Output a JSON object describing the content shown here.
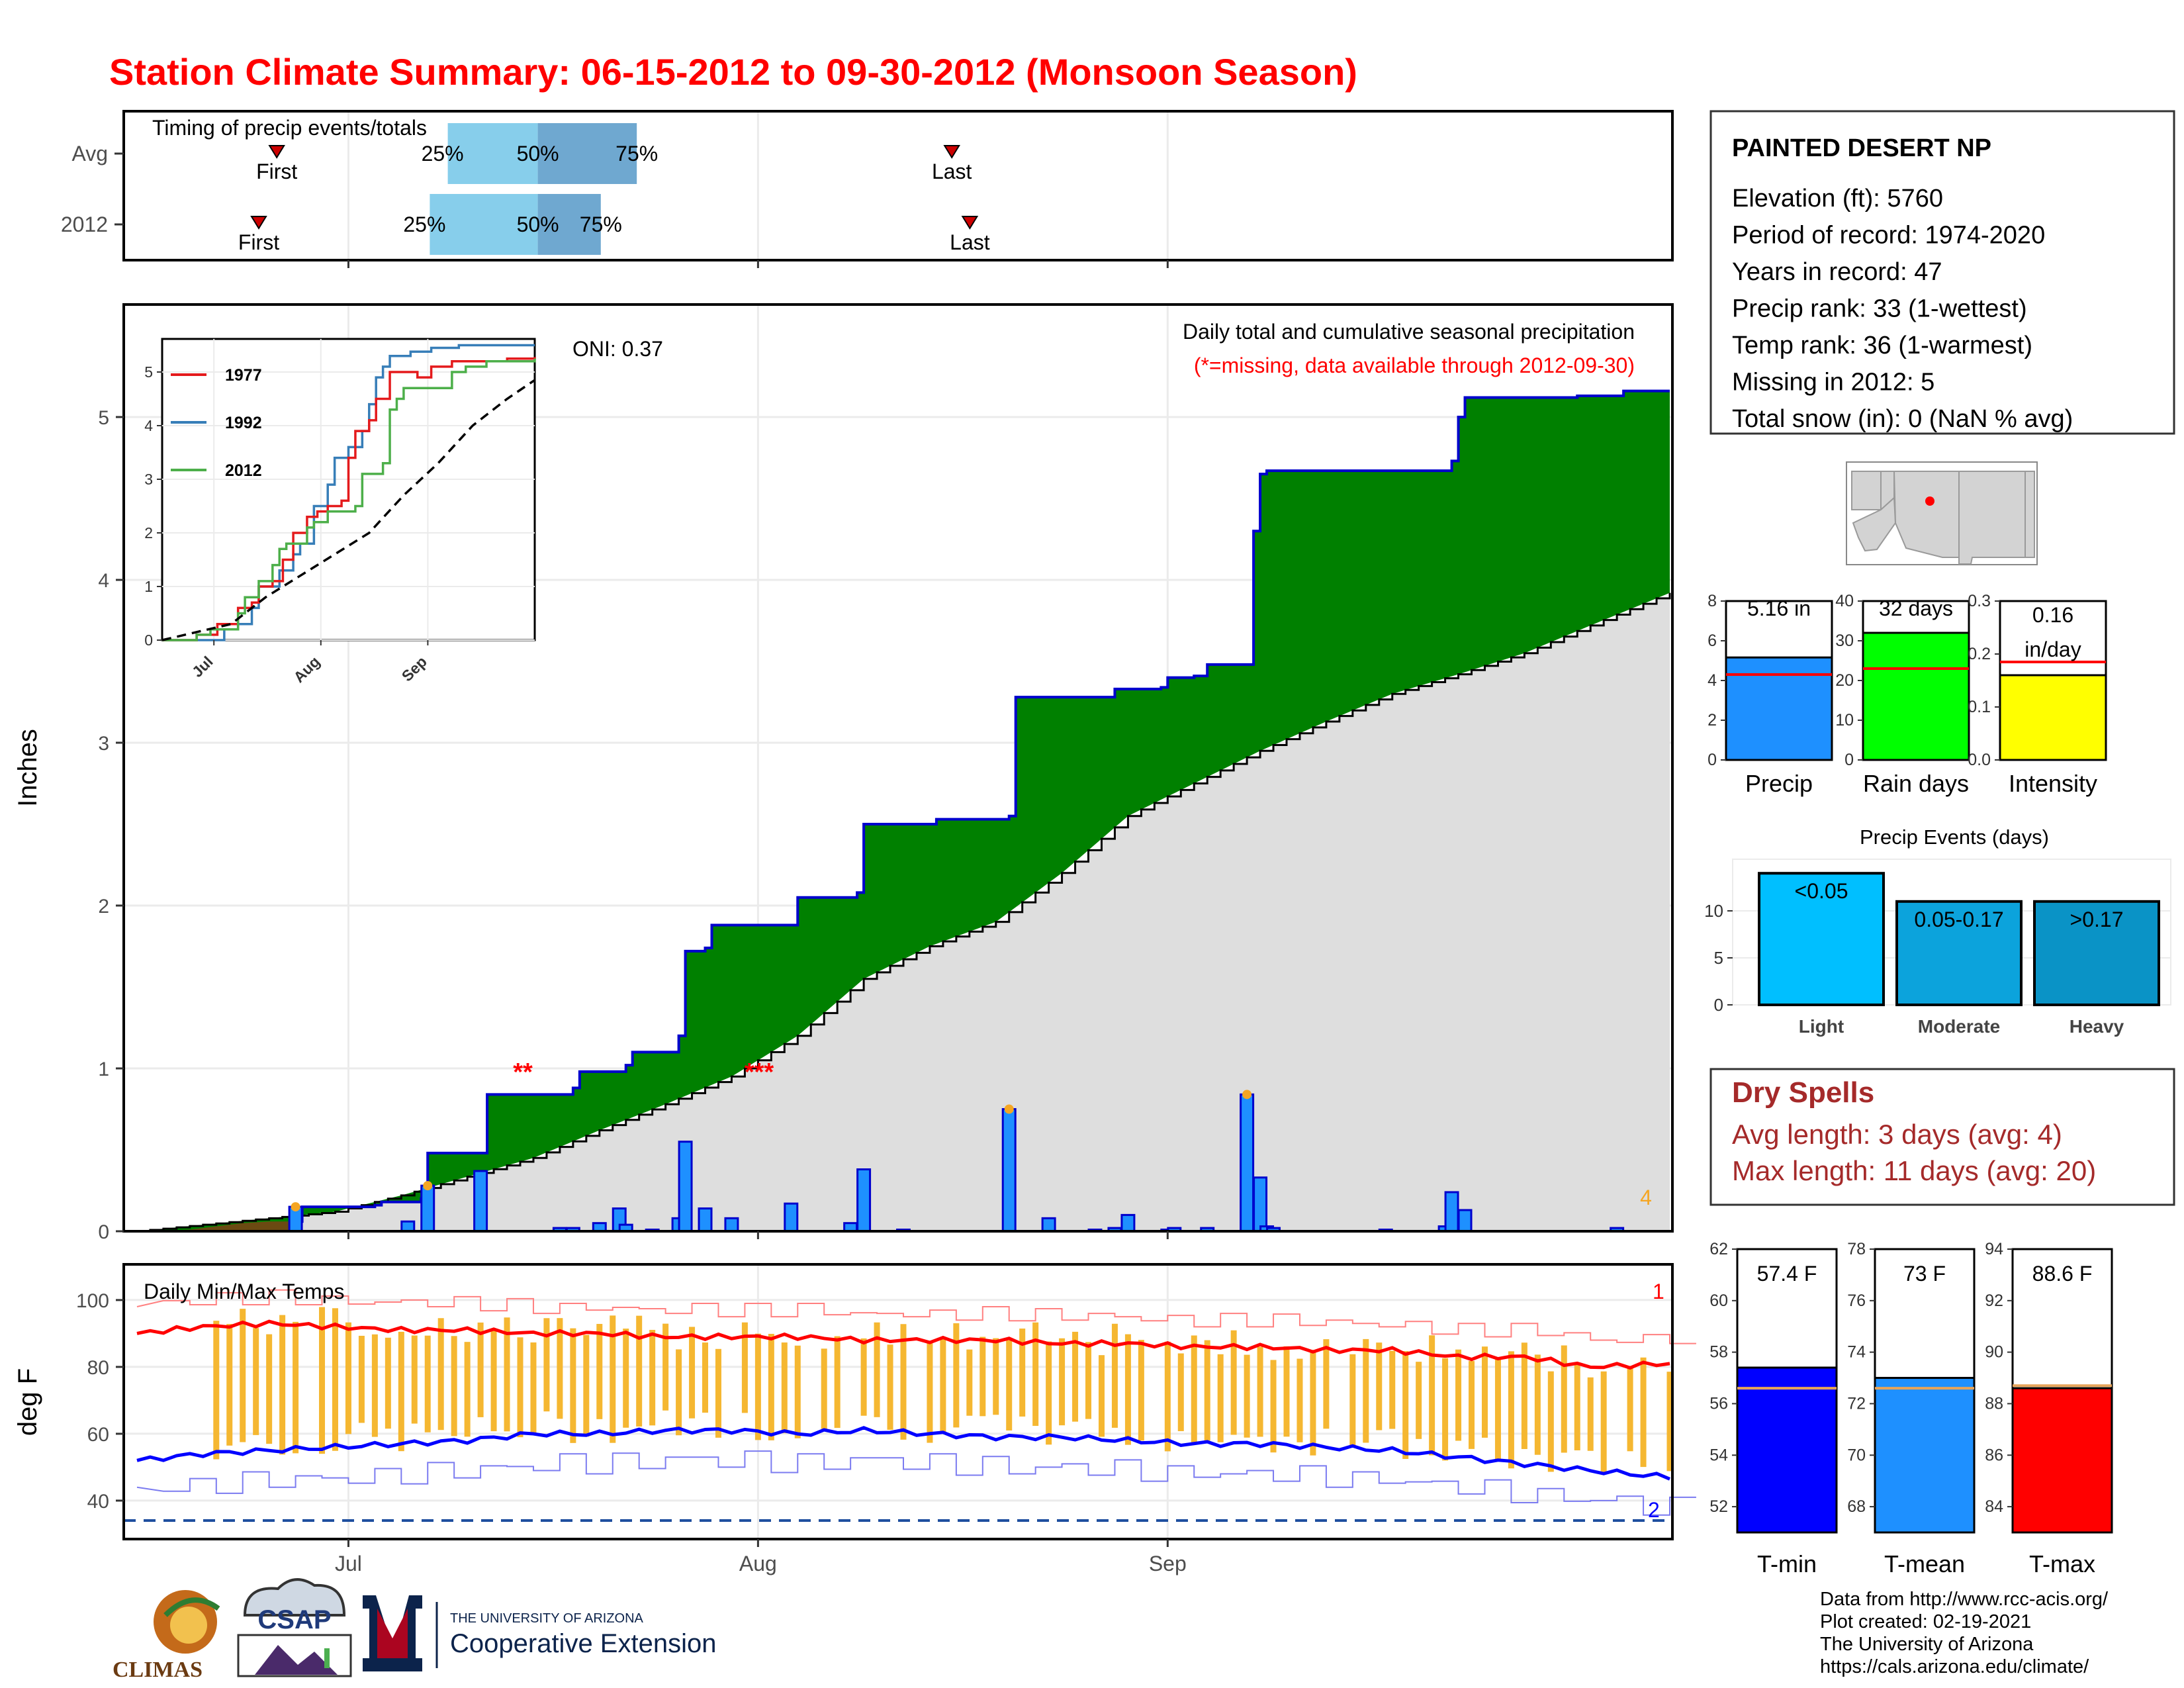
{
  "title": "Station Climate Summary: 06-15-2012 to 09-30-2012 (Monsoon Season)",
  "colors": {
    "title": "#ff0000",
    "cumulative_fill": "#008000",
    "avg_fill": "#dedede",
    "daily_bar": "#1e90ff",
    "tmax": "#ff0000",
    "tmin": "#0000ff",
    "temp_bar": "#f5b731",
    "dry": "#a52a2a"
  },
  "timing": {
    "title": "Timing of precip events/totals",
    "rows": [
      {
        "label": "Avg",
        "first_doy": 183,
        "p25_doy": 202,
        "p50_doy": 212,
        "p75_doy": 223,
        "last_doy": 258,
        "first_label": "First",
        "last_label": "Last",
        "p25_label": "25%",
        "p50_label": "50%",
        "p75_label": "75%"
      },
      {
        "label": "2012",
        "first_doy": 181,
        "p25_doy": 200,
        "p50_doy": 212,
        "p75_doy": 219,
        "last_doy": 260,
        "first_label": "First",
        "last_label": "Last",
        "p25_label": "25%",
        "p50_label": "50%",
        "p75_label": "75%"
      }
    ]
  },
  "precip_panel": {
    "ylabel": "Inches",
    "yticks": [
      "0",
      "1",
      "2",
      "3",
      "4",
      "5"
    ],
    "xticks": [
      "Jul",
      "Aug",
      "Sep"
    ],
    "oni": "ONI: 0.37",
    "caption1": "Daily total and cumulative seasonal precipitation",
    "caption2": "(*=missing, data available through 2012-09-30)",
    "missing1": "**",
    "missing2": "***",
    "count_label": "4"
  },
  "inset": {
    "yticks": [
      "0",
      "1",
      "2",
      "3",
      "4",
      "5"
    ],
    "xticks": [
      "Jul",
      "Aug",
      "Sep"
    ],
    "legend": [
      {
        "name": "1977",
        "color": "#e41a1c"
      },
      {
        "name": "1992",
        "color": "#377eb8"
      },
      {
        "name": "2012",
        "color": "#4daf4a"
      }
    ]
  },
  "temp_panel": {
    "title": "Daily Min/Max Temps",
    "ylabel": "deg F",
    "yticks": [
      "40",
      "60",
      "80",
      "100"
    ],
    "xticks": [
      "Jul",
      "Aug",
      "Sep"
    ],
    "label_max": "1",
    "label_min": "2"
  },
  "station": {
    "name": "PAINTED DESERT NP",
    "lines": [
      "Elevation (ft): 5760",
      "Period of record: 1974-2020",
      "Years in record: 47",
      "Precip rank: 33 (1-wettest)",
      "Temp rank: 36 (1-warmest)",
      "Missing in 2012: 5",
      "Total snow (in): 0 (NaN % avg)"
    ]
  },
  "summary_bars": [
    {
      "label": "Precip",
      "value_text": "5.16 in",
      "value": 5.16,
      "avg": 4.3,
      "ymax": 8,
      "yticks": [
        "0",
        "2",
        "4",
        "6",
        "8"
      ],
      "color": "#1e90ff"
    },
    {
      "label": "Rain days",
      "value_text": "32 days",
      "value": 32,
      "avg": 23,
      "ymax": 40,
      "yticks": [
        "0",
        "10",
        "20",
        "30",
        "40"
      ],
      "color": "#00ff00"
    },
    {
      "label": "Intensity",
      "value_text": "0.16",
      "value_text2": "in/day",
      "value": 0.16,
      "avg": 0.185,
      "ymax": 0.3,
      "yticks": [
        "0.0",
        "0.1",
        "0.2",
        "0.3"
      ],
      "color": "#ffff00"
    }
  ],
  "events": {
    "title": "Precip Events (days)",
    "yticks": [
      "0",
      "5",
      "10"
    ],
    "bars": [
      {
        "label": "Light",
        "name": "<0.05",
        "value": 14,
        "color": "#00bfff"
      },
      {
        "label": "Moderate",
        "name": "0.05-0.17",
        "value": 11,
        "color": "#0ca3dc"
      },
      {
        "label": "Heavy",
        "name": ">0.17",
        "value": 11,
        "color": "#0a93c6"
      }
    ]
  },
  "dry_spells": {
    "title": "Dry Spells",
    "avg": "Avg length: 3 days (avg: 4)",
    "max": "Max length: 11 days (avg: 20)"
  },
  "temp_bars": [
    {
      "label": "T-min",
      "value_text": "57.4 F",
      "value": 57.4,
      "avg": 56.6,
      "ymin": 51,
      "ymax": 62,
      "yticks": [
        "52",
        "54",
        "56",
        "58",
        "60",
        "62"
      ],
      "color": "#0000ff"
    },
    {
      "label": "T-mean",
      "value_text": "73 F",
      "value": 73.0,
      "avg": 72.6,
      "ymin": 67,
      "ymax": 78,
      "yticks": [
        "68",
        "70",
        "72",
        "74",
        "76",
        "78"
      ],
      "color": "#1e90ff"
    },
    {
      "label": "T-max",
      "value_text": "88.6 F",
      "value": 88.6,
      "avg": 88.7,
      "ymin": 83,
      "ymax": 94,
      "yticks": [
        "84",
        "86",
        "88",
        "90",
        "92",
        "94"
      ],
      "color": "#ff0000"
    }
  ],
  "footer": {
    "lines": [
      "Data from http://www.rcc-acis.org/",
      "Plot created: 02-19-2021",
      "The University of Arizona",
      "https://cals.arizona.edu/climate/"
    ],
    "logo1": "CLIMAS",
    "logo2": "CSAP",
    "logo3a": "THE UNIVERSITY OF ARIZONA",
    "logo3b": "Cooperative Extension"
  },
  "chart_data": {
    "type": "area",
    "x_units": "day of season (0 = Jun 15)",
    "cum_2012": [
      [
        0,
        0
      ],
      [
        12,
        0
      ],
      [
        13,
        0.02
      ],
      [
        20,
        0.04
      ],
      [
        24,
        0.06
      ],
      [
        25,
        0.15
      ],
      [
        36,
        0.16
      ],
      [
        37,
        0.18
      ],
      [
        43,
        0.2
      ],
      [
        44,
        0.48
      ],
      [
        52,
        0.48
      ],
      [
        53,
        0.84
      ],
      [
        65,
        0.84
      ],
      [
        66,
        0.88
      ],
      [
        67,
        0.98
      ],
      [
        74,
        1.02
      ],
      [
        75,
        1.1
      ],
      [
        82,
        1.2
      ],
      [
        83,
        1.72
      ],
      [
        86,
        1.74
      ],
      [
        87,
        1.88
      ],
      [
        99,
        1.88
      ],
      [
        100,
        2.05
      ],
      [
        108,
        2.05
      ],
      [
        109,
        2.08
      ],
      [
        110,
        2.5
      ],
      [
        121,
        2.53
      ],
      [
        132,
        2.55
      ],
      [
        133,
        3.28
      ],
      [
        147,
        3.28
      ],
      [
        148,
        3.33
      ],
      [
        155,
        3.34
      ],
      [
        156,
        3.4
      ],
      [
        160,
        3.41
      ],
      [
        162,
        3.48
      ],
      [
        168,
        3.48
      ],
      [
        169,
        4.3
      ],
      [
        170,
        4.65
      ],
      [
        171,
        4.67
      ],
      [
        198,
        4.67
      ],
      [
        199,
        4.73
      ],
      [
        200,
        5.0
      ],
      [
        201,
        5.12
      ],
      [
        218,
        5.13
      ],
      [
        225,
        5.16
      ],
      [
        232,
        5.16
      ]
    ],
    "cum_avg": [
      [
        0,
        0
      ],
      [
        30,
        0.12
      ],
      [
        40,
        0.22
      ],
      [
        60,
        0.45
      ],
      [
        70,
        0.62
      ],
      [
        80,
        0.78
      ],
      [
        90,
        0.95
      ],
      [
        100,
        1.2
      ],
      [
        110,
        1.55
      ],
      [
        120,
        1.75
      ],
      [
        130,
        1.9
      ],
      [
        140,
        2.2
      ],
      [
        150,
        2.55
      ],
      [
        160,
        2.75
      ],
      [
        170,
        2.95
      ],
      [
        180,
        3.13
      ],
      [
        190,
        3.3
      ],
      [
        200,
        3.42
      ],
      [
        210,
        3.55
      ],
      [
        220,
        3.72
      ],
      [
        232,
        3.92
      ]
    ],
    "daily_2012": [
      [
        24,
        0.15
      ],
      [
        41,
        0.06
      ],
      [
        44,
        0.28
      ],
      [
        52,
        0.37
      ],
      [
        64,
        0.02
      ],
      [
        66,
        0.02
      ],
      [
        70,
        0.05
      ],
      [
        73,
        0.14
      ],
      [
        74,
        0.04
      ],
      [
        78,
        0.01
      ],
      [
        82,
        0.08
      ],
      [
        83,
        0.55
      ],
      [
        86,
        0.14
      ],
      [
        90,
        0.08
      ],
      [
        99,
        0.17
      ],
      [
        108,
        0.05
      ],
      [
        110,
        0.38
      ],
      [
        116,
        0.01
      ],
      [
        132,
        0.75
      ],
      [
        138,
        0.08
      ],
      [
        145,
        0.01
      ],
      [
        148,
        0.02
      ],
      [
        150,
        0.1
      ],
      [
        156,
        0.01
      ],
      [
        157,
        0.02
      ],
      [
        162,
        0.02
      ],
      [
        168,
        0.84
      ],
      [
        170,
        0.33
      ],
      [
        171,
        0.03
      ],
      [
        172,
        0.02
      ],
      [
        189,
        0.01
      ],
      [
        198,
        0.03
      ],
      [
        199,
        0.24
      ],
      [
        201,
        0.13
      ],
      [
        224,
        0.02
      ]
    ],
    "inset_1977": [
      [
        0,
        0
      ],
      [
        10,
        0.1
      ],
      [
        14,
        0.1
      ],
      [
        16,
        0.3
      ],
      [
        20,
        0.3
      ],
      [
        22,
        0.6
      ],
      [
        26,
        0.7
      ],
      [
        28,
        1.0
      ],
      [
        32,
        1.1
      ],
      [
        35,
        1.5
      ],
      [
        38,
        2.0
      ],
      [
        42,
        2.3
      ],
      [
        45,
        2.4
      ],
      [
        48,
        2.5
      ],
      [
        52,
        2.6
      ],
      [
        54,
        3.4
      ],
      [
        56,
        3.9
      ],
      [
        60,
        4.1
      ],
      [
        62,
        4.5
      ],
      [
        64,
        4.5
      ],
      [
        66,
        5.0
      ],
      [
        72,
        5.0
      ],
      [
        74,
        4.9
      ],
      [
        78,
        5.1
      ],
      [
        84,
        5.2
      ],
      [
        90,
        5.2
      ],
      [
        100,
        5.25
      ],
      [
        108,
        5.28
      ]
    ],
    "inset_1992": [
      [
        0,
        0
      ],
      [
        16,
        0
      ],
      [
        18,
        0.2
      ],
      [
        22,
        0.3
      ],
      [
        26,
        0.6
      ],
      [
        28,
        1.0
      ],
      [
        34,
        1.3
      ],
      [
        38,
        1.6
      ],
      [
        40,
        1.8
      ],
      [
        44,
        2.5
      ],
      [
        48,
        2.9
      ],
      [
        50,
        3.4
      ],
      [
        54,
        3.6
      ],
      [
        58,
        3.9
      ],
      [
        60,
        4.4
      ],
      [
        62,
        4.9
      ],
      [
        64,
        5.1
      ],
      [
        66,
        5.3
      ],
      [
        72,
        5.38
      ],
      [
        78,
        5.45
      ],
      [
        86,
        5.5
      ],
      [
        108,
        5.5
      ]
    ],
    "inset_2012": [
      [
        0,
        0
      ],
      [
        10,
        0.1
      ],
      [
        14,
        0.2
      ],
      [
        22,
        0.5
      ],
      [
        24,
        0.8
      ],
      [
        28,
        1.1
      ],
      [
        32,
        1.4
      ],
      [
        34,
        1.7
      ],
      [
        36,
        1.8
      ],
      [
        42,
        2.1
      ],
      [
        44,
        2.2
      ],
      [
        48,
        2.4
      ],
      [
        56,
        2.5
      ],
      [
        58,
        3.1
      ],
      [
        64,
        3.3
      ],
      [
        66,
        4.3
      ],
      [
        68,
        4.5
      ],
      [
        70,
        4.7
      ],
      [
        80,
        4.7
      ],
      [
        84,
        5.0
      ],
      [
        88,
        5.1
      ],
      [
        94,
        5.2
      ],
      [
        108,
        5.25
      ]
    ],
    "inset_avg": [
      [
        0,
        0
      ],
      [
        20,
        0.3
      ],
      [
        30,
        0.8
      ],
      [
        40,
        1.2
      ],
      [
        50,
        1.6
      ],
      [
        60,
        2.0
      ],
      [
        70,
        2.7
      ],
      [
        80,
        3.3
      ],
      [
        90,
        4.0
      ],
      [
        100,
        4.5
      ],
      [
        108,
        4.85
      ]
    ],
    "tmax_avg": [
      [
        0,
        90
      ],
      [
        10,
        92
      ],
      [
        20,
        93
      ],
      [
        30,
        92
      ],
      [
        40,
        91
      ],
      [
        50,
        91
      ],
      [
        60,
        90
      ],
      [
        70,
        90
      ],
      [
        80,
        89
      ],
      [
        90,
        89
      ],
      [
        100,
        89
      ],
      [
        110,
        88
      ],
      [
        120,
        88
      ],
      [
        130,
        88
      ],
      [
        140,
        87
      ],
      [
        150,
        87
      ],
      [
        160,
        86
      ],
      [
        170,
        86
      ],
      [
        180,
        85
      ],
      [
        190,
        85
      ],
      [
        200,
        83
      ],
      [
        210,
        83
      ],
      [
        220,
        80
      ],
      [
        232,
        81
      ]
    ],
    "tmin_avg": [
      [
        0,
        52
      ],
      [
        10,
        54
      ],
      [
        20,
        55
      ],
      [
        30,
        56
      ],
      [
        40,
        57
      ],
      [
        50,
        58
      ],
      [
        60,
        60
      ],
      [
        70,
        60
      ],
      [
        80,
        61
      ],
      [
        90,
        61
      ],
      [
        100,
        60
      ],
      [
        110,
        61
      ],
      [
        120,
        60
      ],
      [
        130,
        59
      ],
      [
        140,
        59
      ],
      [
        150,
        58
      ],
      [
        160,
        57
      ],
      [
        170,
        57
      ],
      [
        180,
        56
      ],
      [
        190,
        55
      ],
      [
        200,
        53
      ],
      [
        210,
        51
      ],
      [
        220,
        49
      ],
      [
        232,
        47
      ]
    ]
  }
}
